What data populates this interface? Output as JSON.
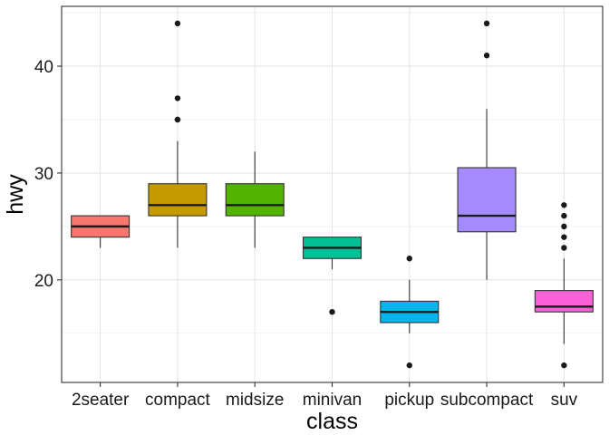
{
  "chart_data": {
    "type": "box",
    "xlabel": "class",
    "ylabel": "hwy",
    "ylim": [
      10.4,
      45.6
    ],
    "yticks": [
      20,
      30,
      40
    ],
    "grid": true,
    "categories": [
      "2seater",
      "compact",
      "midsize",
      "minivan",
      "pickup",
      "subcompact",
      "suv"
    ],
    "boxes": [
      {
        "name": "2seater",
        "color": "#F8766D",
        "low": 23,
        "q1": 24,
        "median": 25,
        "q3": 26,
        "high": 26,
        "outliers": []
      },
      {
        "name": "compact",
        "color": "#C49A00",
        "low": 23,
        "q1": 26,
        "median": 27,
        "q3": 29,
        "high": 33,
        "outliers": [
          35,
          37,
          35,
          44
        ]
      },
      {
        "name": "midsize",
        "color": "#53B400",
        "low": 23,
        "q1": 26,
        "median": 27,
        "q3": 29,
        "high": 32,
        "outliers": []
      },
      {
        "name": "minivan",
        "color": "#00C094",
        "low": 21,
        "q1": 22,
        "median": 23,
        "q3": 24,
        "high": 24,
        "outliers": [
          17
        ]
      },
      {
        "name": "pickup",
        "color": "#00B6EB",
        "low": 15,
        "q1": 16,
        "median": 17,
        "q3": 18,
        "high": 20,
        "outliers": [
          12,
          22
        ]
      },
      {
        "name": "subcompact",
        "color": "#A58AFF",
        "low": 20,
        "q1": 24.5,
        "median": 26,
        "q3": 30.5,
        "high": 36,
        "outliers": [
          44,
          41
        ]
      },
      {
        "name": "suv",
        "color": "#FB61D7",
        "low": 14,
        "q1": 17,
        "median": 17.5,
        "q3": 19,
        "high": 22,
        "outliers": [
          12,
          23,
          24,
          25,
          26,
          27
        ]
      }
    ]
  }
}
